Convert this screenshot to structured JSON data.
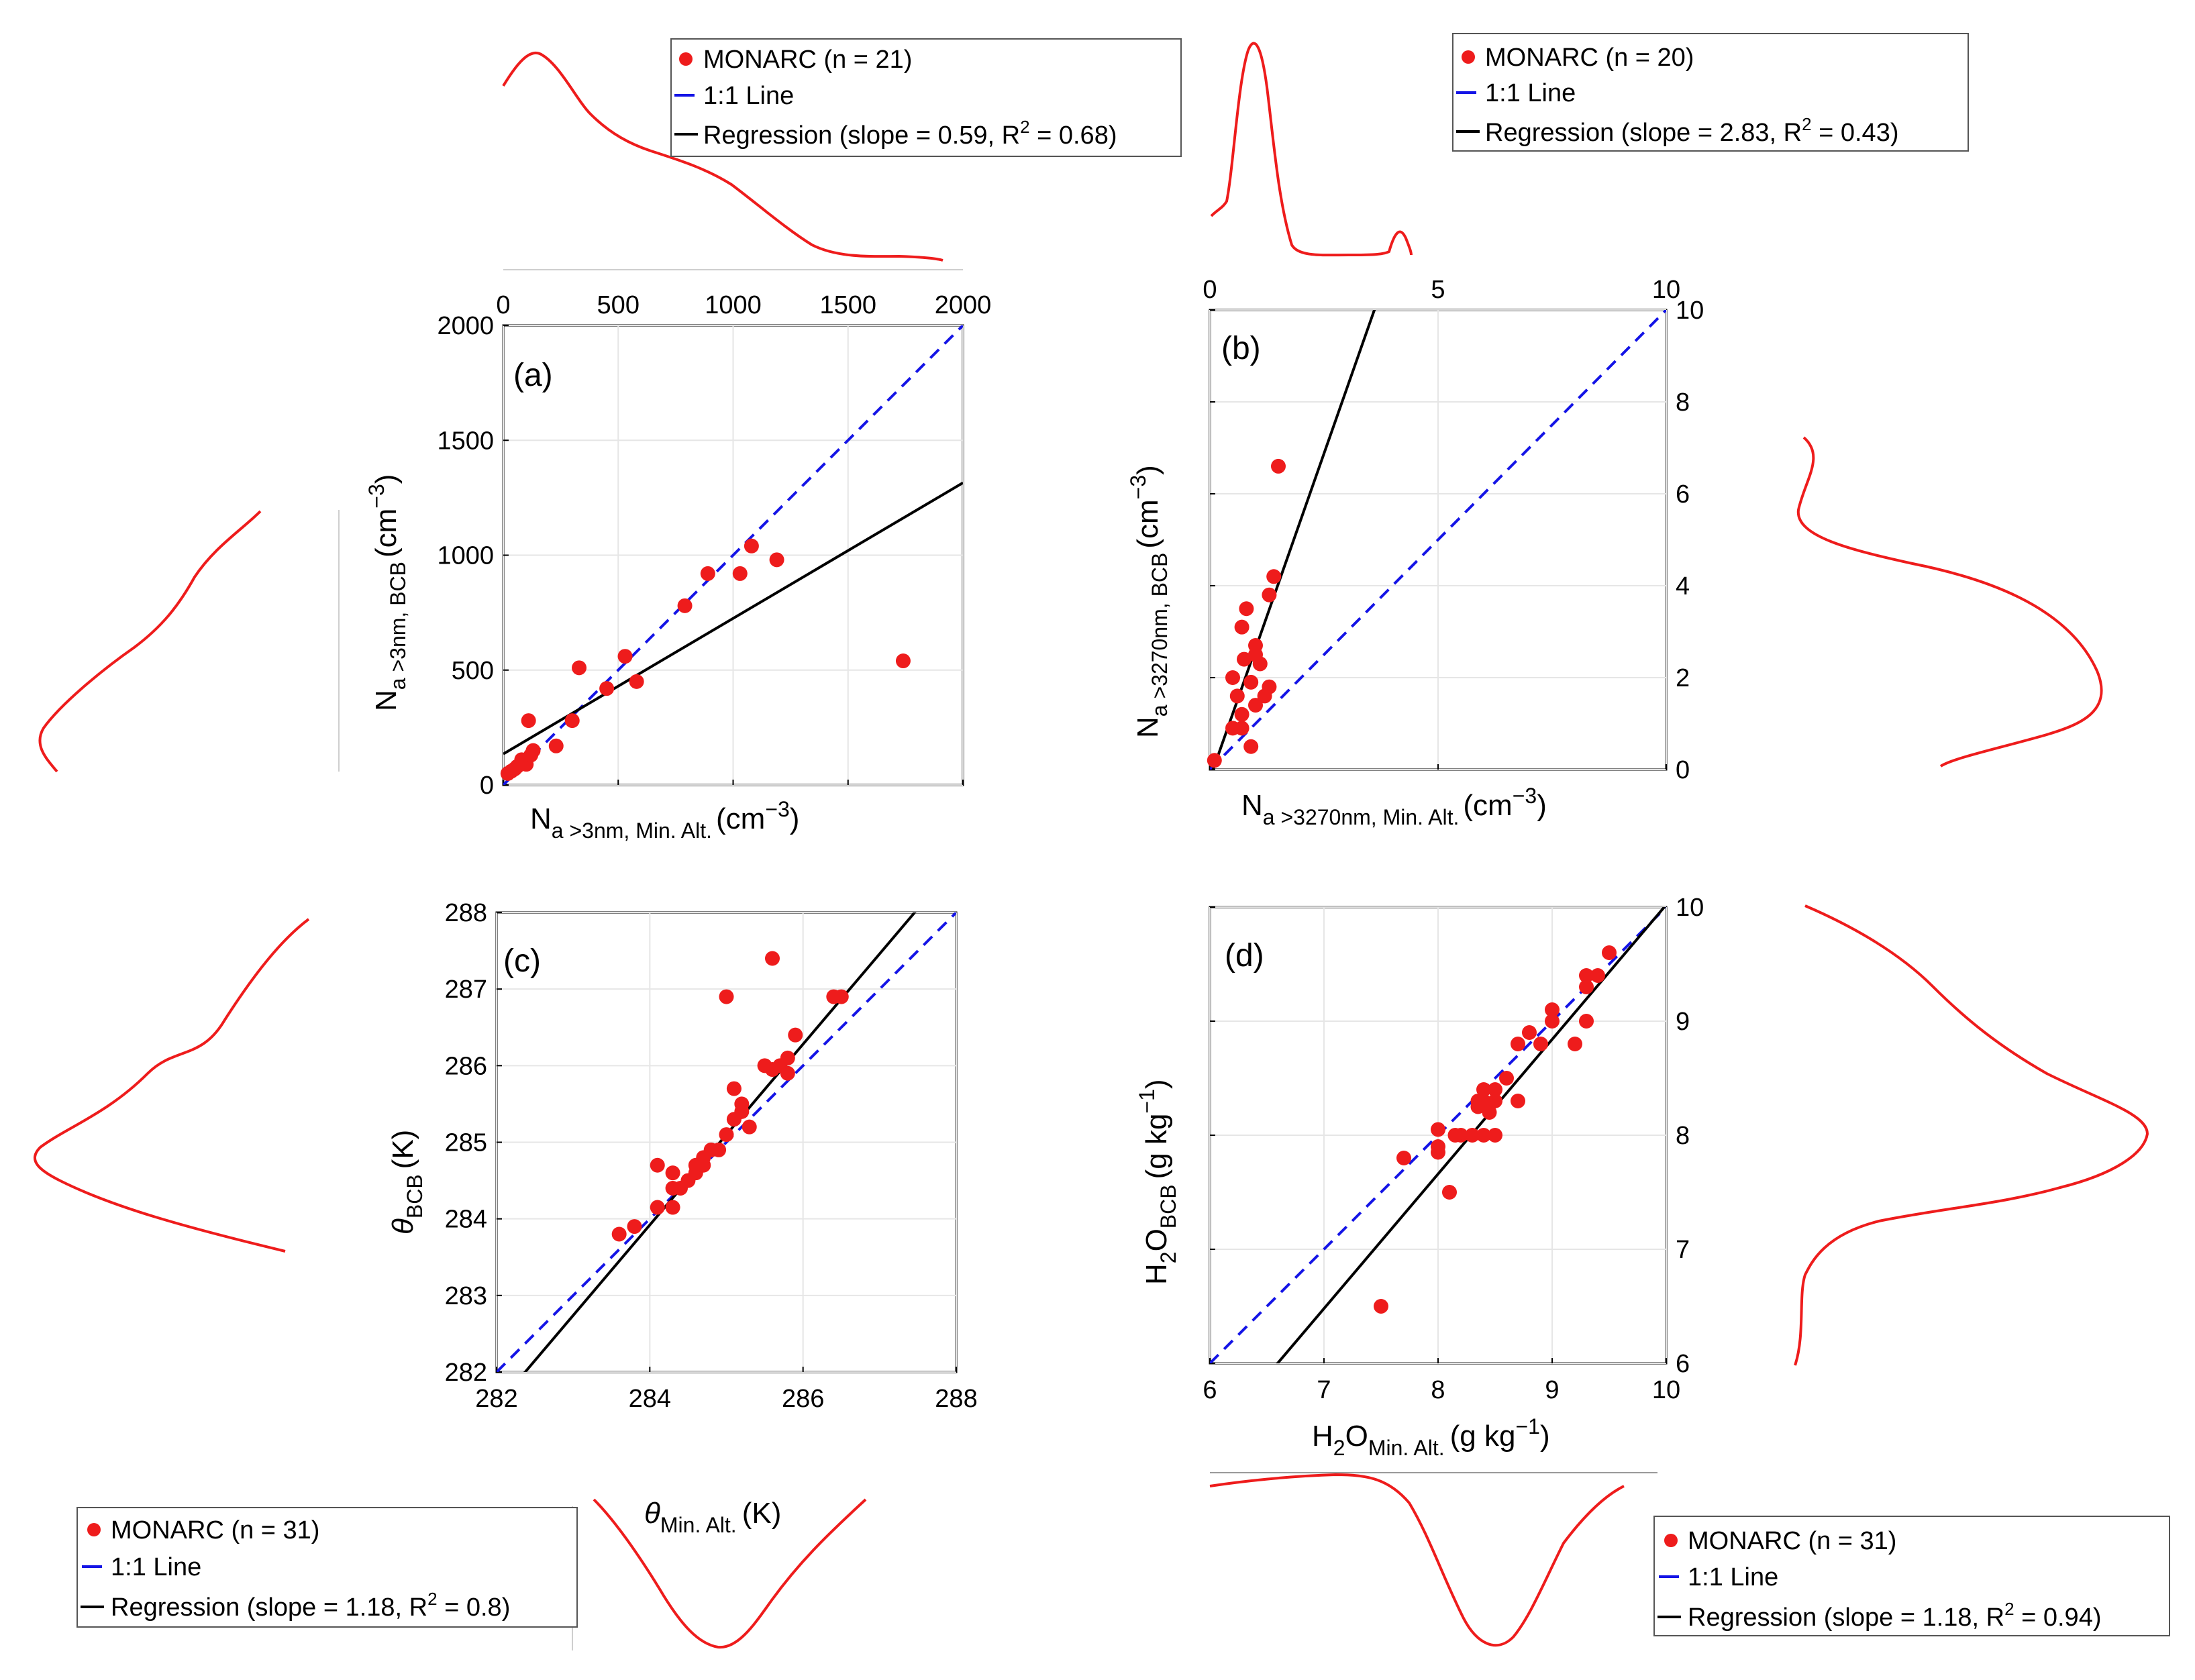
{
  "chart_data": [
    {
      "id": "a",
      "type": "scatter",
      "panel_label": "(a)",
      "xlabel": {
        "main": "N",
        "sub": "a >3nm, Min. Alt.",
        "unit": "(cm",
        "sup": "−3",
        "close": ")"
      },
      "ylabel": {
        "main": "N",
        "sub": "a >3nm, BCB",
        "unit": "(cm",
        "sup": "−3",
        "close": ")"
      },
      "xlim": [
        0,
        2000
      ],
      "ylim": [
        0,
        2000
      ],
      "xticks": [
        0,
        500,
        1000,
        1500,
        2000
      ],
      "yticks": [
        0,
        500,
        1000,
        1500,
        2000
      ],
      "x_tick_position": "top",
      "y_tick_position": "left",
      "grid": true,
      "points": [
        [
          20,
          50
        ],
        [
          35,
          60
        ],
        [
          50,
          70
        ],
        [
          60,
          80
        ],
        [
          80,
          110
        ],
        [
          100,
          90
        ],
        [
          120,
          130
        ],
        [
          130,
          150
        ],
        [
          110,
          280
        ],
        [
          230,
          170
        ],
        [
          300,
          280
        ],
        [
          330,
          510
        ],
        [
          450,
          420
        ],
        [
          530,
          560
        ],
        [
          580,
          450
        ],
        [
          790,
          780
        ],
        [
          890,
          920
        ],
        [
          1030,
          920
        ],
        [
          1080,
          1040
        ],
        [
          1190,
          980
        ],
        [
          1740,
          540
        ]
      ],
      "one_to_one": [
        [
          0,
          0
        ],
        [
          2000,
          2000
        ]
      ],
      "regression": {
        "slope": 0.59,
        "intercept": 135
      },
      "legend": {
        "marker_label": "MONARC (n = 21)",
        "line_label": "1:1 Line",
        "regression": {
          "prefix": "Regression (slope = 0.59, R",
          "sup": "2",
          "suffix": " = 0.68)"
        },
        "position": "top-right"
      },
      "marginal": "top-and-left"
    },
    {
      "id": "b",
      "type": "scatter",
      "panel_label": "(b)",
      "xlabel": {
        "main": "N",
        "sub": "a >3270nm, Min. Alt.",
        "unit": "(cm",
        "sup": "−3",
        "close": ")"
      },
      "ylabel": {
        "main": "N",
        "sub": "a >3270nm, BCB",
        "unit": "(cm",
        "sup": "−3",
        "close": ")"
      },
      "xlim": [
        0,
        10
      ],
      "ylim": [
        0,
        10
      ],
      "xticks": [
        0,
        5,
        10
      ],
      "yticks": [
        0,
        2,
        4,
        6,
        8,
        10
      ],
      "x_tick_position": "top",
      "y_tick_position": "right",
      "grid": true,
      "points": [
        [
          0.1,
          0.2
        ],
        [
          0.5,
          0.9
        ],
        [
          0.7,
          0.9
        ],
        [
          0.5,
          2.0
        ],
        [
          0.6,
          1.6
        ],
        [
          0.7,
          3.1
        ],
        [
          0.75,
          2.4
        ],
        [
          0.8,
          3.5
        ],
        [
          0.9,
          1.9
        ],
        [
          0.7,
          1.2
        ],
        [
          1.0,
          2.5
        ],
        [
          1.0,
          2.7
        ],
        [
          1.1,
          2.3
        ],
        [
          1.0,
          1.4
        ],
        [
          1.2,
          1.6
        ],
        [
          1.3,
          1.8
        ],
        [
          1.3,
          3.8
        ],
        [
          1.4,
          4.2
        ],
        [
          1.5,
          6.6
        ],
        [
          0.9,
          0.5
        ]
      ],
      "one_to_one": [
        [
          0,
          0
        ],
        [
          10,
          10
        ]
      ],
      "regression": {
        "slope": 2.83,
        "intercept": -0.2
      },
      "legend": {
        "marker_label": "MONARC (n = 20)",
        "line_label": "1:1 Line",
        "regression": {
          "prefix": "Regression (slope = 2.83, R",
          "sup": "2",
          "suffix": " = 0.43)"
        },
        "position": "top-right"
      },
      "marginal": "top-and-right"
    },
    {
      "id": "c",
      "type": "scatter",
      "panel_label": "(c)",
      "xlabel": {
        "main": "θ",
        "sub": "Min. Alt.",
        "unit": "(K)",
        "sup": "",
        "close": ""
      },
      "ylabel": {
        "main": "θ",
        "sub": "BCB",
        "unit": "(K)",
        "sup": "",
        "close": ""
      },
      "xlim": [
        282,
        288
      ],
      "ylim": [
        282,
        288
      ],
      "xticks": [
        282,
        284,
        286,
        288
      ],
      "yticks": [
        282,
        283,
        284,
        285,
        286,
        287,
        288
      ],
      "x_tick_position": "bottom",
      "y_tick_position": "left",
      "grid": true,
      "points": [
        [
          283.6,
          283.8
        ],
        [
          283.8,
          283.9
        ],
        [
          284.1,
          284.15
        ],
        [
          284.1,
          284.7
        ],
        [
          284.3,
          284.15
        ],
        [
          284.3,
          284.4
        ],
        [
          284.3,
          284.6
        ],
        [
          284.4,
          284.4
        ],
        [
          284.5,
          284.5
        ],
        [
          284.6,
          284.6
        ],
        [
          284.6,
          284.7
        ],
        [
          284.7,
          284.8
        ],
        [
          284.8,
          284.9
        ],
        [
          284.9,
          284.9
        ],
        [
          285.0,
          285.1
        ],
        [
          285.0,
          286.9
        ],
        [
          285.1,
          285.3
        ],
        [
          285.1,
          285.7
        ],
        [
          285.2,
          285.4
        ],
        [
          285.2,
          285.5
        ],
        [
          285.3,
          285.2
        ],
        [
          285.5,
          286.0
        ],
        [
          285.6,
          287.4
        ],
        [
          285.6,
          285.95
        ],
        [
          285.7,
          286.0
        ],
        [
          285.8,
          285.9
        ],
        [
          285.8,
          286.1
        ],
        [
          285.9,
          286.4
        ],
        [
          286.4,
          286.9
        ],
        [
          286.5,
          286.9
        ],
        [
          284.7,
          284.7
        ]
      ],
      "one_to_one": [
        [
          282,
          282
        ],
        [
          288,
          288
        ]
      ],
      "regression": {
        "slope": 1.18,
        "intercept": -51.2
      },
      "legend": {
        "marker_label": "MONARC (n = 31)",
        "line_label": "1:1 Line",
        "regression": {
          "prefix": "Regression (slope = 1.18, R",
          "sup": "2",
          "suffix": " = 0.8)"
        },
        "position": "bottom-left"
      },
      "marginal": "bottom-and-left"
    },
    {
      "id": "d",
      "type": "scatter",
      "panel_label": "(d)",
      "xlabel": {
        "main": "H",
        "sub2": "2",
        "main2": "O",
        "sub": "Min. Alt.",
        "unit": "(g kg",
        "sup": "−1",
        "close": ")"
      },
      "ylabel": {
        "main": "H",
        "sub2": "2",
        "main2": "O",
        "sub": "BCB",
        "unit": "(g kg",
        "sup": "−1",
        "close": ")"
      },
      "xlim": [
        6,
        10
      ],
      "ylim": [
        6,
        10
      ],
      "xticks": [
        6,
        7,
        8,
        9,
        10
      ],
      "yticks": [
        6,
        7,
        8,
        9,
        10
      ],
      "x_tick_position": "bottom",
      "y_tick_position": "right",
      "grid": true,
      "points": [
        [
          7.5,
          6.5
        ],
        [
          7.7,
          7.8
        ],
        [
          8.0,
          7.85
        ],
        [
          8.0,
          7.9
        ],
        [
          8.0,
          8.05
        ],
        [
          8.1,
          7.5
        ],
        [
          8.2,
          8.0
        ],
        [
          8.3,
          8.0
        ],
        [
          8.35,
          8.3
        ],
        [
          8.4,
          8.0
        ],
        [
          8.4,
          8.3
        ],
        [
          8.4,
          8.4
        ],
        [
          8.45,
          8.2
        ],
        [
          8.5,
          8.3
        ],
        [
          8.5,
          8.0
        ],
        [
          8.5,
          8.4
        ],
        [
          8.6,
          8.5
        ],
        [
          8.7,
          8.3
        ],
        [
          8.7,
          8.8
        ],
        [
          8.8,
          8.9
        ],
        [
          8.9,
          8.8
        ],
        [
          9.0,
          9.1
        ],
        [
          9.0,
          9.0
        ],
        [
          9.2,
          8.8
        ],
        [
          9.3,
          9.3
        ],
        [
          9.3,
          9.4
        ],
        [
          9.4,
          9.4
        ],
        [
          9.5,
          9.6
        ],
        [
          9.3,
          9.0
        ],
        [
          8.35,
          8.25
        ],
        [
          8.15,
          8.0
        ]
      ],
      "one_to_one": [
        [
          6,
          6
        ],
        [
          10,
          10
        ]
      ],
      "regression": {
        "slope": 1.18,
        "intercept": -1.78
      },
      "legend": {
        "marker_label": "MONARC (n = 31)",
        "line_label": "1:1 Line",
        "regression": {
          "prefix": "Regression (slope = 1.18, R",
          "sup": "2",
          "suffix": " = 0.94)"
        },
        "position": "bottom-right"
      },
      "marginal": "bottom-and-right"
    }
  ],
  "colors": {
    "points": "#ee1c1c",
    "one_to_one": "#1414e6",
    "regression": "#000000",
    "marginal": "#ee1c1c",
    "grid": "#e6e6e6"
  }
}
